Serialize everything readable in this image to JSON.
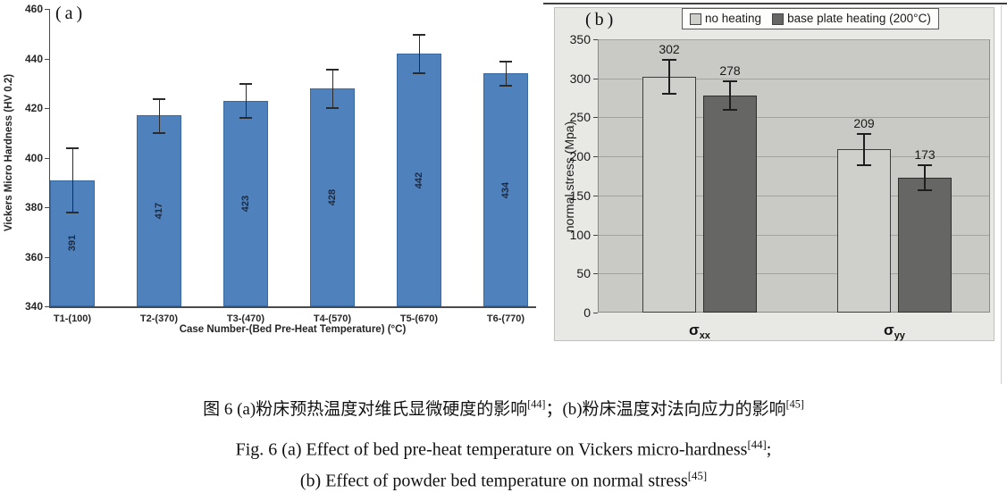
{
  "figure": {
    "caption_zh": {
      "p1": "图 6 (a)粉床预热温度对维氏显微硬度的影响",
      "ref1": "[44]",
      "p2": "；(b)粉床温度对法向应力的影响",
      "ref2": "[45]"
    },
    "caption_en1": {
      "p1": "Fig. 6 (a) Effect of bed pre-heat temperature on Vickers micro-hardness",
      "ref": "[44]",
      "p2": ";"
    },
    "caption_en2": {
      "p1": "(b) Effect of powder bed temperature on normal stress",
      "ref": "[45]"
    }
  },
  "chart_data": [
    {
      "id": "a",
      "type": "bar",
      "panel_label": "(a)",
      "categories": [
        "T1-(100)",
        "T2-(370)",
        "T3-(470)",
        "T4-(570)",
        "T5-(670)",
        "T6-(770)"
      ],
      "values": [
        391,
        417,
        423,
        428,
        442,
        434
      ],
      "errors": [
        13,
        7,
        7,
        8,
        8,
        5
      ],
      "xlabel": "Case Number-(Bed Pre-Heat Temperature) (°C)",
      "ylabel": "Vickers Micro Hardness (HV 0.2)",
      "ylim": [
        340,
        460
      ],
      "ytick_step": 20,
      "grid": false,
      "bar_color": "#4f81bd",
      "bar_border": "#3a69a0",
      "background": "#ffffff"
    },
    {
      "id": "b",
      "type": "bar",
      "panel_label": "(b)",
      "categories": [
        {
          "base": "σ",
          "sub": "xx"
        },
        {
          "base": "σ",
          "sub": "yy"
        }
      ],
      "series": [
        {
          "name": "no heating",
          "values": [
            302,
            209
          ],
          "errors": [
            23,
            21
          ],
          "color": "#cfcfcb",
          "border": "#3c3c3a"
        },
        {
          "name": "base plate heating (200°C)",
          "values": [
            278,
            173
          ],
          "errors": [
            19,
            17
          ],
          "color": "#666664",
          "border": "#2e2e2c"
        }
      ],
      "xlabel": "",
      "ylabel": "normal stress (Mpa)",
      "ylim": [
        0,
        350
      ],
      "ytick_step": 50,
      "grid": true,
      "legend_position": "top",
      "plot_background": "#c9c9c5",
      "panel_background": "#e8e8e4",
      "gridline_color": "#a2a29e"
    }
  ]
}
